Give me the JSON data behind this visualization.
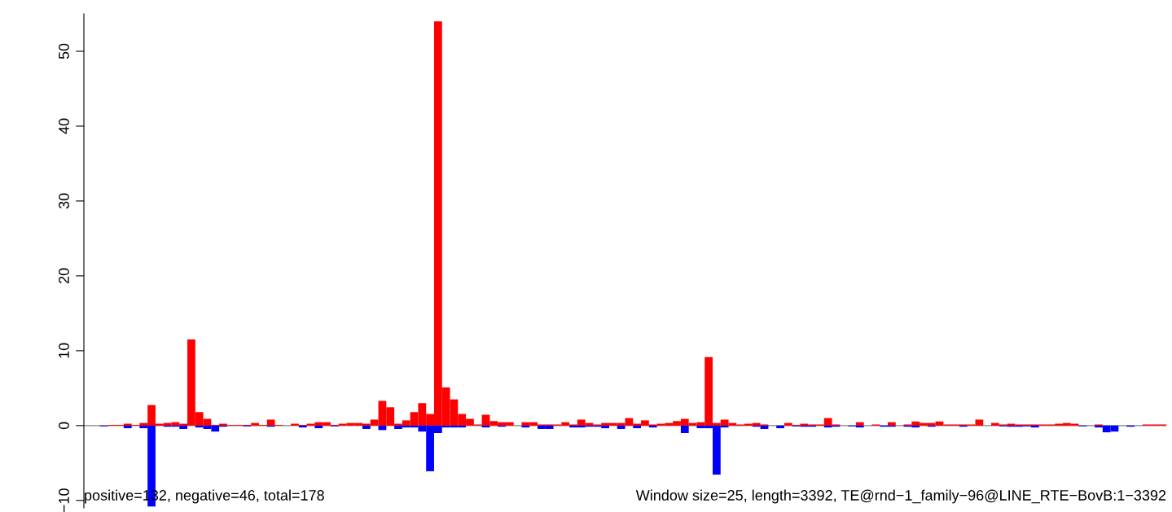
{
  "chart_data": {
    "type": "bar",
    "categories": [
      null,
      null,
      null,
      null,
      null,
      null,
      null,
      null,
      null,
      null,
      null,
      null,
      null,
      null,
      null,
      null,
      null,
      null,
      null,
      null,
      null,
      null,
      null,
      null,
      null,
      null,
      null,
      null,
      null,
      null,
      null,
      null,
      null,
      null,
      null,
      null,
      null,
      null,
      null,
      null,
      null,
      null,
      null,
      null,
      null,
      null,
      null,
      null,
      null,
      null,
      null,
      null,
      null,
      null,
      null,
      null,
      null,
      null,
      null,
      null,
      null,
      null,
      null,
      null,
      null,
      null,
      null,
      null,
      null,
      null,
      null,
      null,
      null,
      null,
      null,
      null,
      null,
      null,
      null,
      null,
      null,
      null,
      null,
      null,
      null,
      null,
      null,
      null,
      null,
      null,
      null,
      null,
      null,
      null,
      null,
      null,
      null,
      null,
      null,
      null,
      null,
      null,
      null,
      null,
      null,
      null,
      null,
      null,
      null,
      null,
      null,
      null,
      null,
      null,
      null,
      null,
      null,
      null,
      null,
      null,
      null,
      null,
      null,
      null,
      null,
      null,
      null,
      null,
      null,
      null,
      null,
      null,
      null,
      null,
      null,
      null
    ],
    "series": [
      {
        "color": "#ff0000",
        "values": [
          0,
          0,
          0,
          0.1,
          0.1,
          0.25,
          0.1,
          0.35,
          2.75,
          0.25,
          0.35,
          0.45,
          0.25,
          11.5,
          1.8,
          0.9,
          0.1,
          0.25,
          0.1,
          0.1,
          0.1,
          0.35,
          0.1,
          0.8,
          0.1,
          0,
          0.25,
          0.1,
          0.25,
          0.45,
          0.45,
          0.1,
          0.25,
          0.35,
          0.35,
          0.25,
          0.8,
          3.3,
          2.45,
          0.25,
          0.7,
          1.8,
          3.0,
          1.55,
          54,
          5.1,
          3.5,
          1.55,
          0.9,
          0.15,
          1.45,
          0.6,
          0.45,
          0.45,
          0,
          0.45,
          0.45,
          0.15,
          0.15,
          0.15,
          0.45,
          0.15,
          0.8,
          0.35,
          0.15,
          0.35,
          0.35,
          0.35,
          1.0,
          0.25,
          0.7,
          0.15,
          0.25,
          0.35,
          0.6,
          0.9,
          0.35,
          0.45,
          9.15,
          0.35,
          0.8,
          0.35,
          0.15,
          0.25,
          0.35,
          0.15,
          0,
          0,
          0.35,
          0.1,
          0.25,
          0.15,
          0.15,
          1.0,
          0.15,
          0,
          0,
          0.45,
          0,
          0.15,
          0,
          0.45,
          0,
          0.15,
          0.55,
          0.35,
          0.35,
          0.55,
          0.15,
          0.15,
          0.15,
          0.15,
          0.8,
          0,
          0.35,
          0.15,
          0.25,
          0.15,
          0.15,
          0.15,
          0.15,
          0.15,
          0.25,
          0.35,
          0.25,
          0,
          0,
          0.15,
          0,
          0,
          0,
          0,
          0,
          0.15,
          0.15,
          0.15
        ]
      },
      {
        "color": "#0000ff",
        "values": [
          0,
          0,
          -0.1,
          0,
          0,
          -0.35,
          0,
          -0.35,
          -10.8,
          0,
          -0.15,
          -0.15,
          -0.45,
          0,
          -0.25,
          -0.45,
          -0.8,
          -0.15,
          0,
          0,
          -0.1,
          0,
          0,
          -0.15,
          0,
          0,
          0,
          -0.25,
          0,
          -0.35,
          0,
          -0.1,
          0,
          0,
          0,
          -0.45,
          0,
          -0.6,
          0,
          -0.45,
          -0.25,
          -0.25,
          -0.8,
          -6.1,
          -1.0,
          -0.25,
          -0.25,
          -0.25,
          0,
          0,
          -0.25,
          0,
          -0.15,
          0,
          0,
          -0.25,
          0,
          -0.45,
          -0.45,
          0,
          0,
          -0.25,
          -0.25,
          -0.15,
          -0.15,
          -0.35,
          0,
          -0.45,
          0,
          -0.35,
          0,
          -0.25,
          0,
          0,
          0,
          -1.0,
          0,
          -0.35,
          -0.35,
          -6.55,
          -0.25,
          0,
          0,
          0,
          -0.15,
          -0.45,
          0,
          -0.35,
          0,
          -0.1,
          -0.15,
          -0.15,
          0,
          -0.25,
          -0.15,
          0,
          -0.1,
          -0.25,
          0,
          0,
          -0.15,
          -0.15,
          0,
          -0.15,
          -0.25,
          0,
          -0.15,
          0,
          0,
          0,
          -0.15,
          0,
          0,
          0,
          0,
          -0.1,
          -0.15,
          -0.15,
          -0.1,
          -0.25,
          0,
          0,
          0,
          0,
          0,
          -0.1,
          0,
          -0.25,
          -0.9,
          -0.8,
          0,
          -0.15,
          0,
          0,
          0,
          0
        ]
      }
    ],
    "ylim": [
      -11,
      55
    ],
    "yticks": [
      {
        "value": -10,
        "label": "−10"
      },
      0,
      10,
      20,
      30,
      40,
      50
    ],
    "ref_lines": [
      {
        "axis": "y",
        "value": 0,
        "color": "#808080"
      }
    ],
    "annotations": [
      "positive=132, negative=46, total=178",
      "Window size=25, length=3392, TE@rnd−1_family−96@LINE_RTE−BovB:1−3392"
    ]
  }
}
